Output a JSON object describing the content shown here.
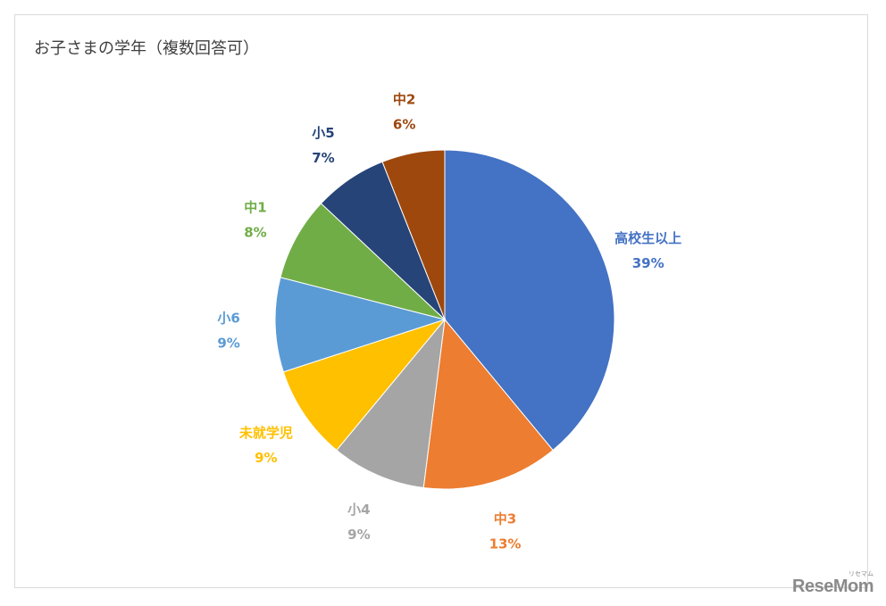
{
  "chart_data": {
    "type": "pie",
    "title": "お子さまの学年（複数回答可）",
    "slices": [
      {
        "label": "高校生以上",
        "value": 39,
        "value_label": "39%",
        "color": "#4472C4"
      },
      {
        "label": "中3",
        "value": 13,
        "value_label": "13%",
        "color": "#ED7D31"
      },
      {
        "label": "小4",
        "value": 9,
        "value_label": "9%",
        "color": "#A5A5A5"
      },
      {
        "label": "未就学児",
        "value": 9,
        "value_label": "9%",
        "color": "#FFC000"
      },
      {
        "label": "小6",
        "value": 9,
        "value_label": "9%",
        "color": "#5B9BD5"
      },
      {
        "label": "中1",
        "value": 8,
        "value_label": "8%",
        "color": "#70AD47"
      },
      {
        "label": "小5",
        "value": 7,
        "value_label": "7%",
        "color": "#264478"
      },
      {
        "label": "中2",
        "value": 6,
        "value_label": "6%",
        "color": "#9E480E"
      }
    ],
    "legend": "none"
  },
  "watermark": {
    "text": "ReseMom",
    "sub": "リセマム"
  }
}
